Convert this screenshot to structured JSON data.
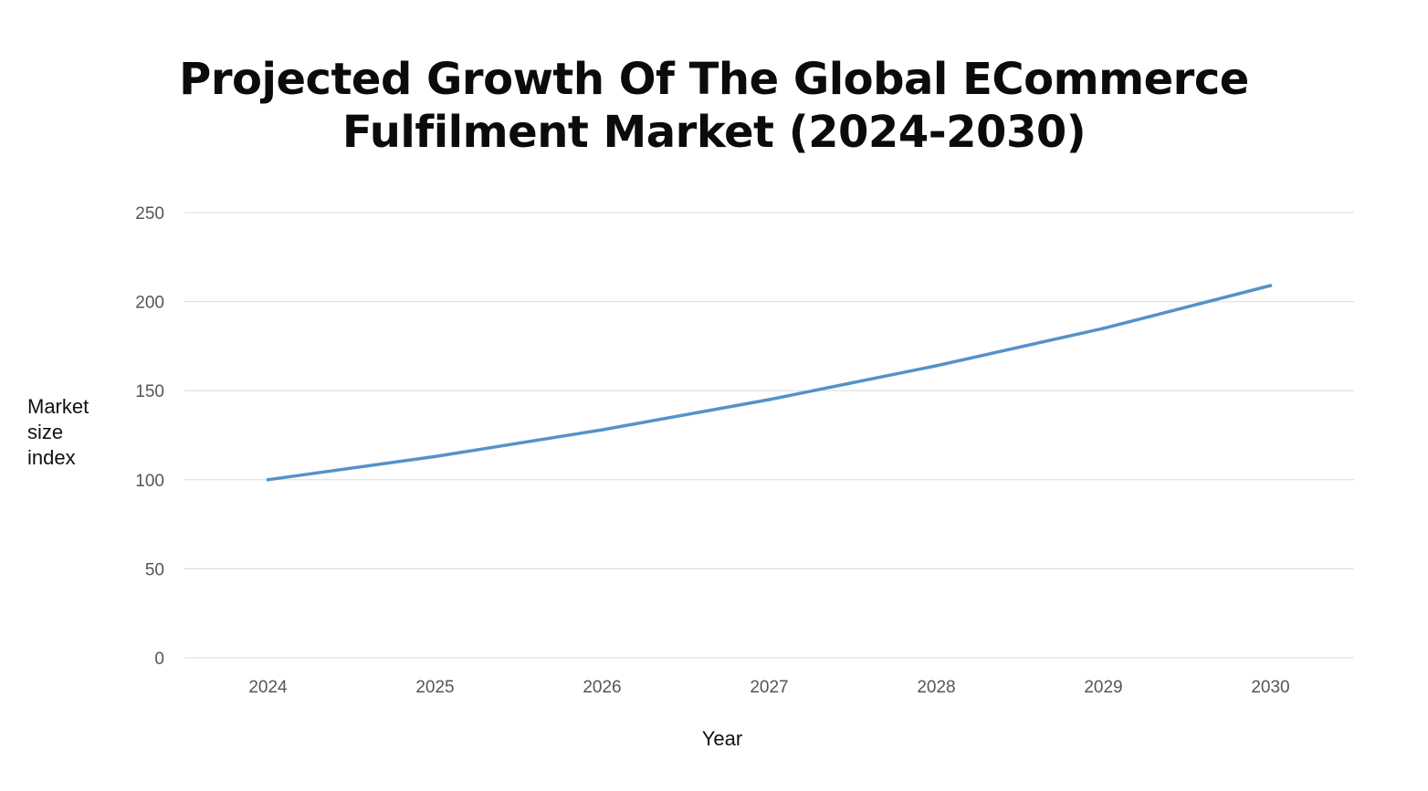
{
  "chart_data": {
    "type": "line",
    "title_lines": [
      "Projected Growth Of The Global ECommerce",
      "Fulfilment Market (2024-2030)"
    ],
    "xlabel": "Year",
    "ylabel_lines": [
      "Market",
      "size",
      "index"
    ],
    "categories": [
      "2024",
      "2025",
      "2026",
      "2027",
      "2028",
      "2029",
      "2030"
    ],
    "series": [
      {
        "values": [
          100,
          113,
          128,
          145,
          164,
          185,
          209
        ],
        "color": "#5592c8"
      }
    ],
    "ylim": [
      0,
      250
    ],
    "yticks": [
      0,
      50,
      100,
      150,
      200,
      250
    ],
    "grid": true,
    "legend": "none"
  }
}
